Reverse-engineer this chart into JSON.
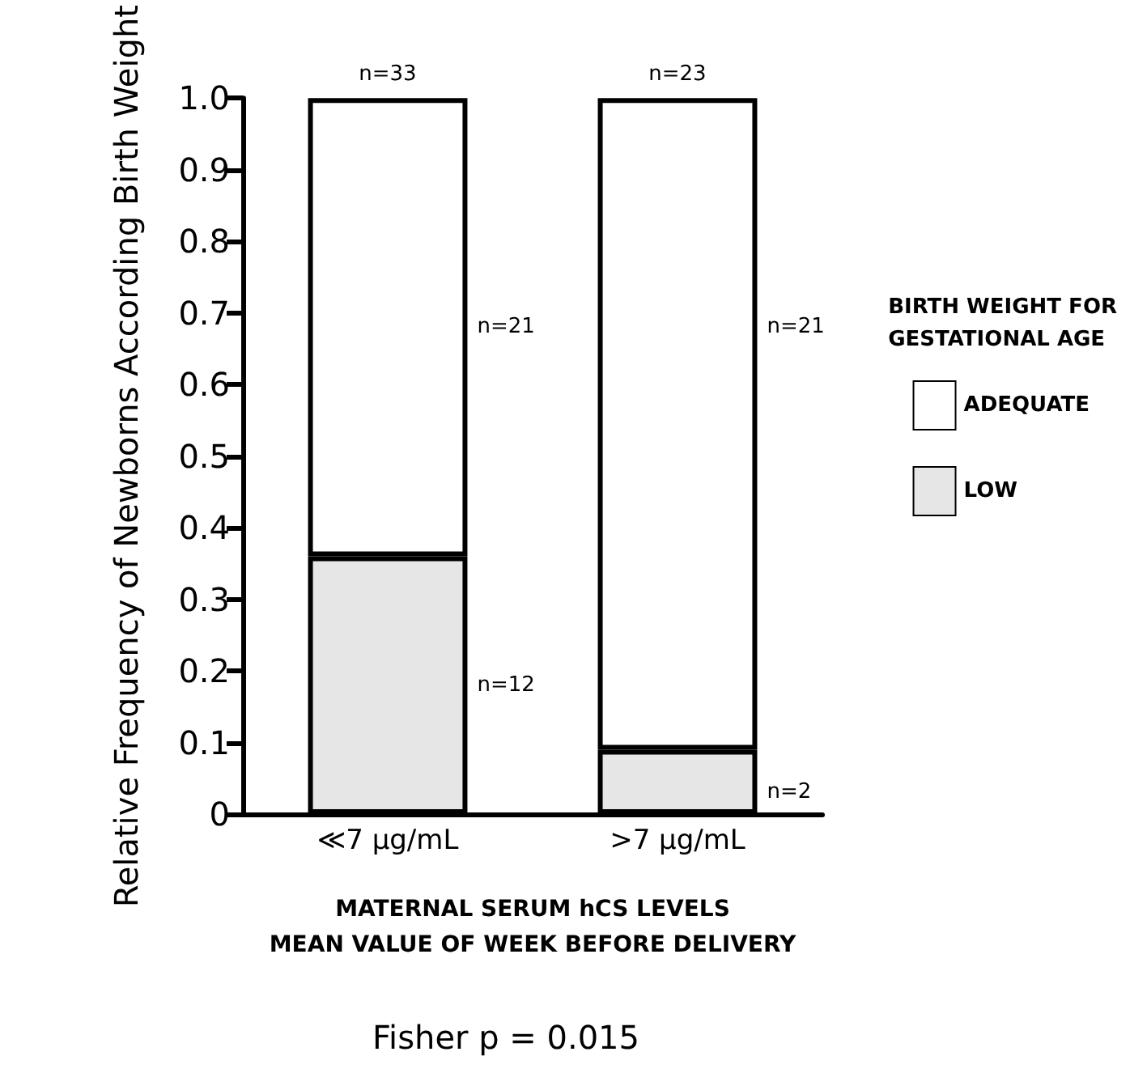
{
  "chart_data": {
    "type": "bar",
    "stacked": true,
    "ylabel": "Relative Frequency of Newborns According Birth Weight",
    "xlabel": "MATERNAL SERUM hCS LEVELS\nMEAN VALUE OF WEEK BEFORE DELIVERY",
    "categories": [
      "≪7 µg/mL",
      ">7 µg/mL"
    ],
    "series": [
      {
        "name": "LOW",
        "color": "#e6e6e6",
        "values": [
          0.36,
          0.09
        ]
      },
      {
        "name": "ADEQUATE",
        "color": "#ffffff",
        "values": [
          0.64,
          0.91
        ]
      }
    ],
    "legend_title": "BIRTH WEIGHT FOR\nGESTATIONAL AGE",
    "legend": "right",
    "ylim": [
      0,
      1
    ],
    "yticks": [
      0,
      {
        "value": 0.1,
        "label": "0.1"
      },
      {
        "value": 0.2,
        "label": "0.2"
      },
      {
        "value": 0.3,
        "label": "0.3"
      },
      {
        "value": 0.4,
        "label": "0.4"
      },
      {
        "value": 0.5,
        "label": "0.5"
      },
      {
        "value": 0.6,
        "label": "0.6"
      },
      {
        "value": 0.7,
        "label": "0.7"
      },
      {
        "value": 0.8,
        "label": "0.8"
      },
      {
        "value": 0.9,
        "label": "0.9"
      },
      {
        "value": 1,
        "label": "1.0"
      }
    ],
    "grid": false,
    "annotations": [
      "n=33",
      "n=23",
      "n=21",
      "n=21",
      "n=12",
      "n=2",
      "Fisher p = 0.015"
    ]
  }
}
